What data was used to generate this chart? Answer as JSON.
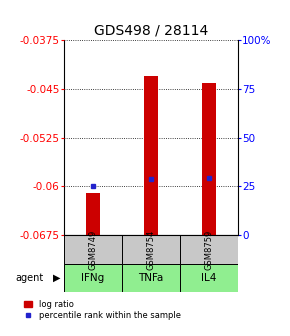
{
  "title": "GDS498 / 28114",
  "ylim": [
    -0.0675,
    -0.0375
  ],
  "yticks": [
    -0.0675,
    -0.06,
    -0.0525,
    -0.045,
    -0.0375
  ],
  "ytick_labels": [
    "-0.0675",
    "-0.06",
    "-0.0525",
    "-0.045",
    "-0.0375"
  ],
  "y2ticks": [
    0,
    25,
    50,
    75,
    100
  ],
  "y2tick_labels": [
    "0",
    "25",
    "50",
    "75",
    "100%"
  ],
  "samples": [
    "GSM8749",
    "GSM8754",
    "GSM8759"
  ],
  "agents": [
    "IFNg",
    "TNFa",
    "IL4"
  ],
  "log_ratios": [
    -0.061,
    -0.043,
    -0.044
  ],
  "bar_bottom": -0.0675,
  "percentile_ranks": [
    25.5,
    29.0,
    29.5
  ],
  "bar_color": "#cc0000",
  "dot_color": "#2222cc",
  "sample_bg": "#c8c8c8",
  "agent_bg": "#90ee90",
  "title_fontsize": 10,
  "tick_fontsize": 7.5,
  "bar_width": 0.25
}
